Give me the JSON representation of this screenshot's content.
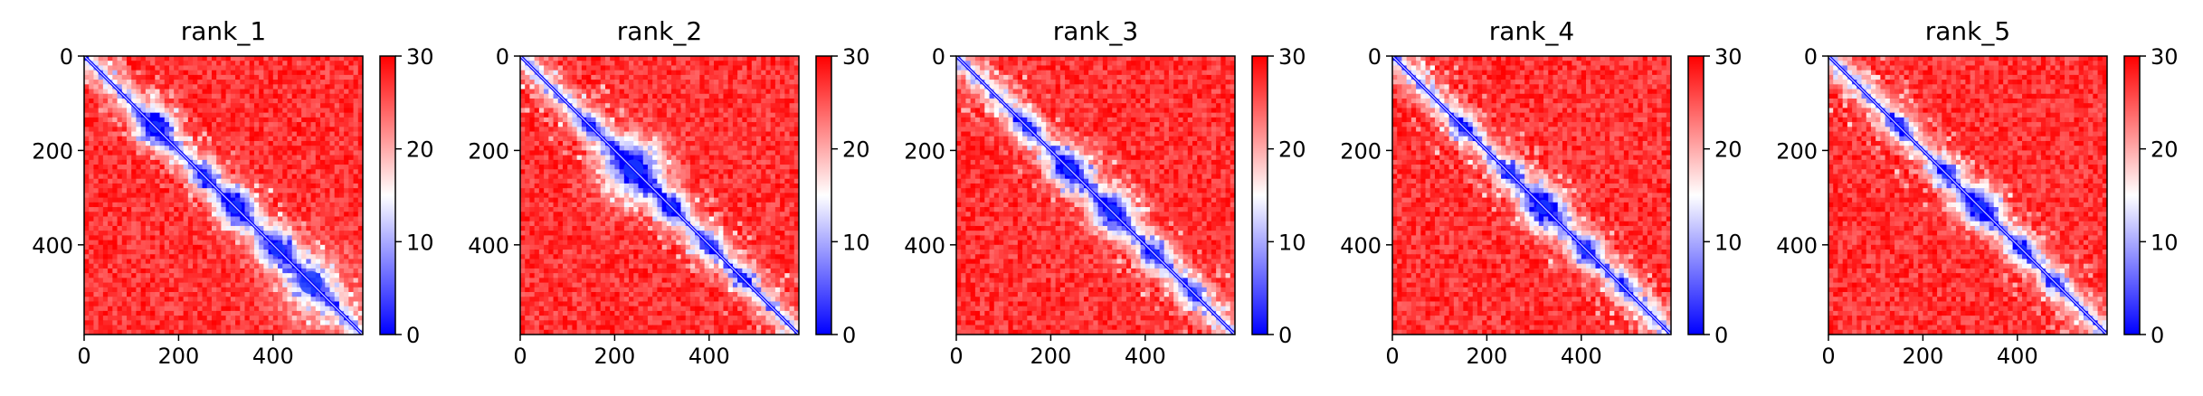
{
  "chart_data": [
    {
      "type": "heatmap",
      "title": "rank_1",
      "matrix_size": 590,
      "x_ticks": [
        0,
        200,
        400
      ],
      "y_ticks": [
        0,
        200,
        400
      ],
      "colorbar": {
        "min": 0,
        "max": 30,
        "ticks": [
          0,
          10,
          20,
          30
        ],
        "colors": [
          "#0000ff",
          "#ffffff",
          "#ff0000"
        ]
      },
      "diagonal_features": [
        {
          "center": 150,
          "radius": 18,
          "strength": 0.9
        },
        {
          "center": 255,
          "radius": 14,
          "strength": 0.6
        },
        {
          "center": 320,
          "radius": 20,
          "strength": 0.8
        },
        {
          "center": 410,
          "radius": 22,
          "strength": 0.7
        },
        {
          "center": 480,
          "radius": 35,
          "strength": 0.5
        }
      ]
    },
    {
      "type": "heatmap",
      "title": "rank_2",
      "matrix_size": 590,
      "x_ticks": [
        0,
        200,
        400
      ],
      "y_ticks": [
        0,
        200,
        400
      ],
      "colorbar": {
        "min": 0,
        "max": 30,
        "ticks": [
          0,
          10,
          20,
          30
        ],
        "colors": [
          "#0000ff",
          "#ffffff",
          "#ff0000"
        ]
      },
      "diagonal_features": [
        {
          "center": 150,
          "radius": 12,
          "strength": 0.6
        },
        {
          "center": 240,
          "radius": 30,
          "strength": 0.9
        },
        {
          "center": 320,
          "radius": 16,
          "strength": 0.7
        },
        {
          "center": 400,
          "radius": 14,
          "strength": 0.6
        },
        {
          "center": 470,
          "radius": 12,
          "strength": 0.5
        }
      ]
    },
    {
      "type": "heatmap",
      "title": "rank_3",
      "matrix_size": 590,
      "x_ticks": [
        0,
        200,
        400
      ],
      "y_ticks": [
        0,
        200,
        400
      ],
      "colorbar": {
        "min": 0,
        "max": 30,
        "ticks": [
          0,
          10,
          20,
          30
        ],
        "colors": [
          "#0000ff",
          "#ffffff",
          "#ff0000"
        ]
      },
      "diagonal_features": [
        {
          "center": 150,
          "radius": 14,
          "strength": 0.6
        },
        {
          "center": 240,
          "radius": 20,
          "strength": 0.8
        },
        {
          "center": 330,
          "radius": 22,
          "strength": 0.8
        },
        {
          "center": 420,
          "radius": 16,
          "strength": 0.6
        },
        {
          "center": 500,
          "radius": 14,
          "strength": 0.5
        }
      ]
    },
    {
      "type": "heatmap",
      "title": "rank_4",
      "matrix_size": 590,
      "x_ticks": [
        0,
        200,
        400
      ],
      "y_ticks": [
        0,
        200,
        400
      ],
      "colorbar": {
        "min": 0,
        "max": 30,
        "ticks": [
          0,
          10,
          20,
          30
        ],
        "colors": [
          "#0000ff",
          "#ffffff",
          "#ff0000"
        ]
      },
      "diagonal_features": [
        {
          "center": 150,
          "radius": 12,
          "strength": 0.6
        },
        {
          "center": 250,
          "radius": 14,
          "strength": 0.6
        },
        {
          "center": 320,
          "radius": 22,
          "strength": 0.8
        },
        {
          "center": 410,
          "radius": 16,
          "strength": 0.6
        },
        {
          "center": 490,
          "radius": 12,
          "strength": 0.5
        }
      ]
    },
    {
      "type": "heatmap",
      "title": "rank_5",
      "matrix_size": 590,
      "x_ticks": [
        0,
        200,
        400
      ],
      "y_ticks": [
        0,
        200,
        400
      ],
      "colorbar": {
        "min": 0,
        "max": 30,
        "ticks": [
          0,
          10,
          20,
          30
        ],
        "colors": [
          "#0000ff",
          "#ffffff",
          "#ff0000"
        ]
      },
      "diagonal_features": [
        {
          "center": 150,
          "radius": 12,
          "strength": 0.6
        },
        {
          "center": 250,
          "radius": 14,
          "strength": 0.6
        },
        {
          "center": 320,
          "radius": 20,
          "strength": 0.8
        },
        {
          "center": 410,
          "radius": 14,
          "strength": 0.6
        },
        {
          "center": 480,
          "radius": 12,
          "strength": 0.5
        }
      ]
    }
  ]
}
